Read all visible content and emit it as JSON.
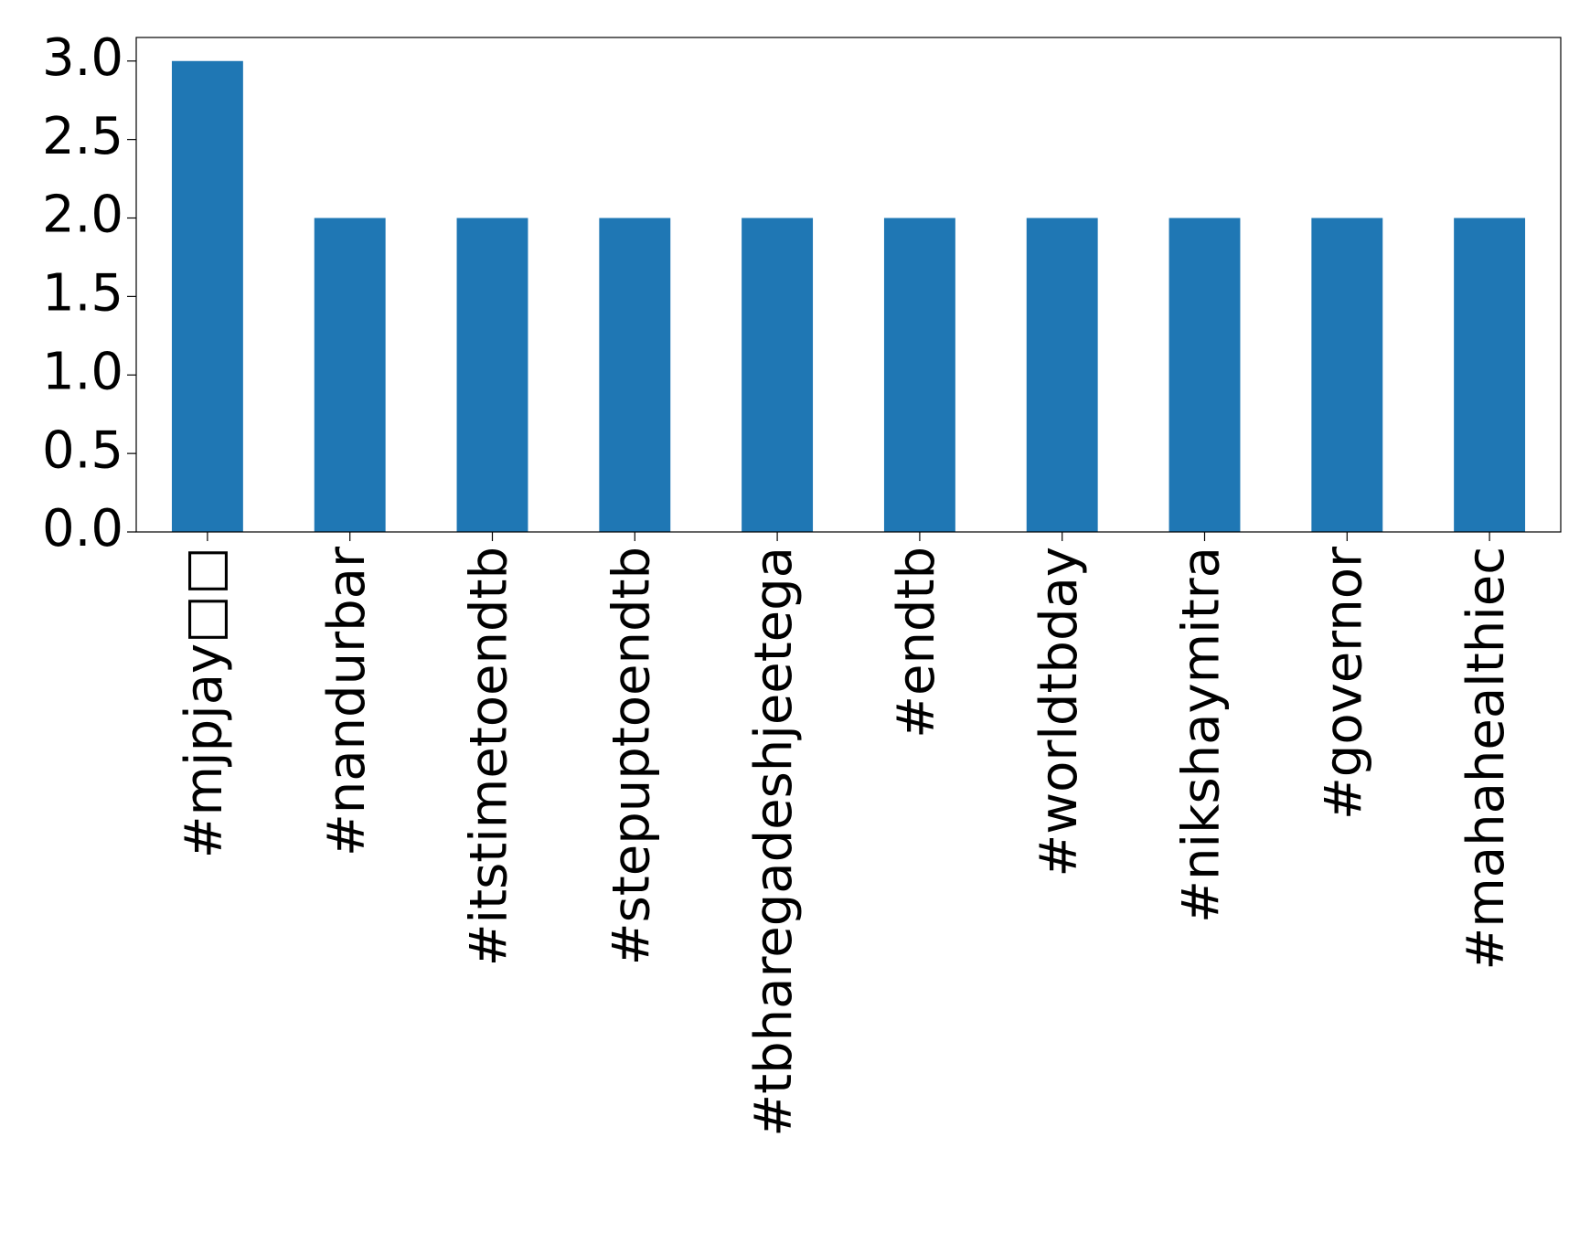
{
  "chart_data": {
    "type": "bar",
    "categories": [
      "#mjpjay□□",
      "#nandurbar",
      "#itstimetoendtb",
      "#stepuptoendtb",
      "#tbharegadeshjeetega",
      "#endtb",
      "#worldtbday",
      "#nikshaymitra",
      "#governor",
      "#mahahealthiec"
    ],
    "values": [
      3,
      2,
      2,
      2,
      2,
      2,
      2,
      2,
      2,
      2
    ],
    "color": "#1f77b4",
    "ylim": [
      0,
      3.15
    ],
    "yticks": [
      {
        "value": 0,
        "label": "0.0"
      },
      {
        "value": 0.5,
        "label": "0.5"
      },
      {
        "value": 1,
        "label": "1.0"
      },
      {
        "value": 1.5,
        "label": "1.5"
      },
      {
        "value": 2,
        "label": "2.0"
      },
      {
        "value": 2.5,
        "label": "2.5"
      },
      {
        "value": 3,
        "label": "3.0"
      }
    ],
    "grid": false
  }
}
